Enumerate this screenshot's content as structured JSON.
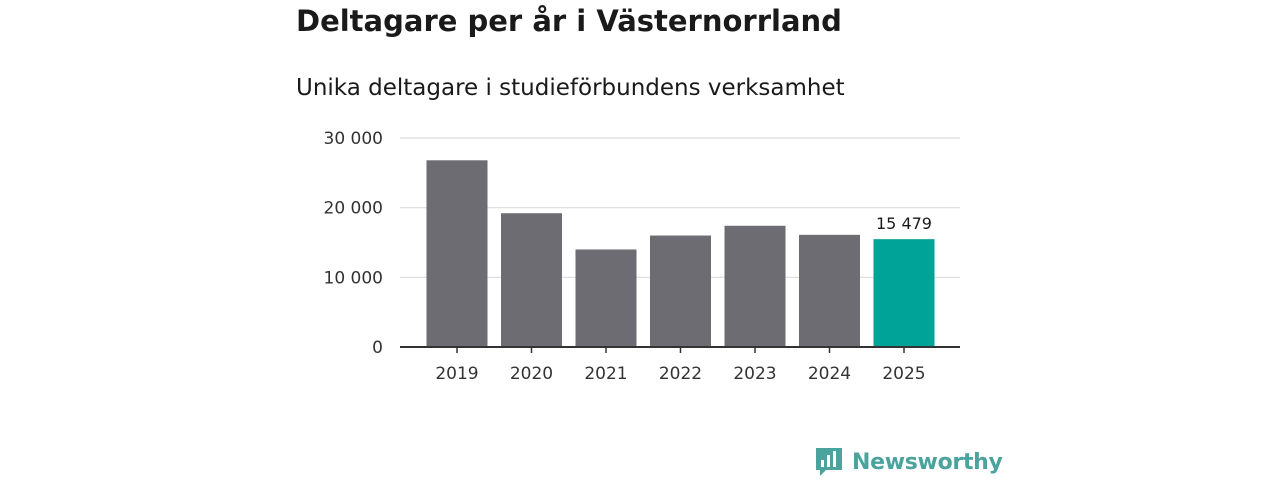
{
  "chart_data": {
    "type": "bar",
    "title": "Deltagare per år i Västernorrland",
    "subtitle": "Unika deltagare i studieförbundens verksamhet",
    "categories": [
      "2019",
      "2020",
      "2021",
      "2022",
      "2023",
      "2024",
      "2025"
    ],
    "values": [
      26800,
      19200,
      14000,
      16000,
      17400,
      16100,
      15479
    ],
    "highlight_index": 6,
    "annotations": [
      {
        "index": 6,
        "label": "15 479"
      }
    ],
    "ylim": [
      0,
      30000
    ],
    "yticks": [
      0,
      10000,
      20000,
      30000
    ],
    "ytick_labels": [
      "0",
      "10 000",
      "20 000",
      "30 000"
    ],
    "xlabel": "",
    "ylabel": "",
    "grid": true,
    "colors": {
      "default": "#6d6c72",
      "highlight": "#00a398",
      "grid": "#dcdcdc",
      "axis": "#333333"
    }
  },
  "brand": {
    "name": "Newsworthy",
    "icon": "newsworthy-logo-icon",
    "color": "#4aa39d"
  }
}
